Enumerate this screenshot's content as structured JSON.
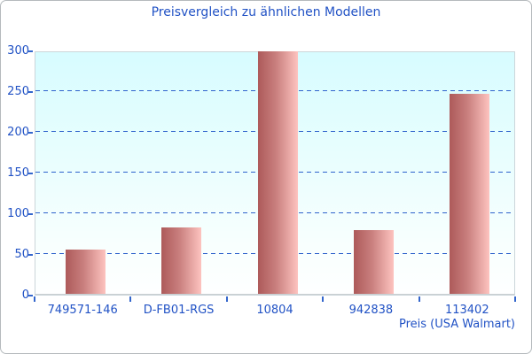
{
  "chart_data": {
    "type": "bar",
    "title": "Preisvergleich zu ähnlichen Modellen",
    "xlabel": "Preis (USA Walmart)",
    "ylabel": "",
    "categories": [
      "749571-146",
      "D-FB01-RGS",
      "10804",
      "942838",
      "113402"
    ],
    "values": [
      55,
      83,
      299,
      79,
      247
    ],
    "ylim": [
      0,
      300
    ],
    "y_ticks": [
      0,
      50,
      100,
      150,
      200,
      250,
      300
    ],
    "grid": "horizontal-dashed",
    "legend": "none",
    "colors": {
      "text_blue": "#2152c5",
      "grid_blue": "#2e62cc",
      "tick_blue": "#3366cc",
      "bar_gradient_left": "#ad5a5a",
      "bar_gradient_right": "#fdc3bf",
      "plot_bg_top": "#d7fcff",
      "plot_bg_bottom": "#feffff",
      "plot_border": "#ccd6da",
      "frame_border": "#b5babd",
      "page_bg": "#ffffff"
    }
  }
}
